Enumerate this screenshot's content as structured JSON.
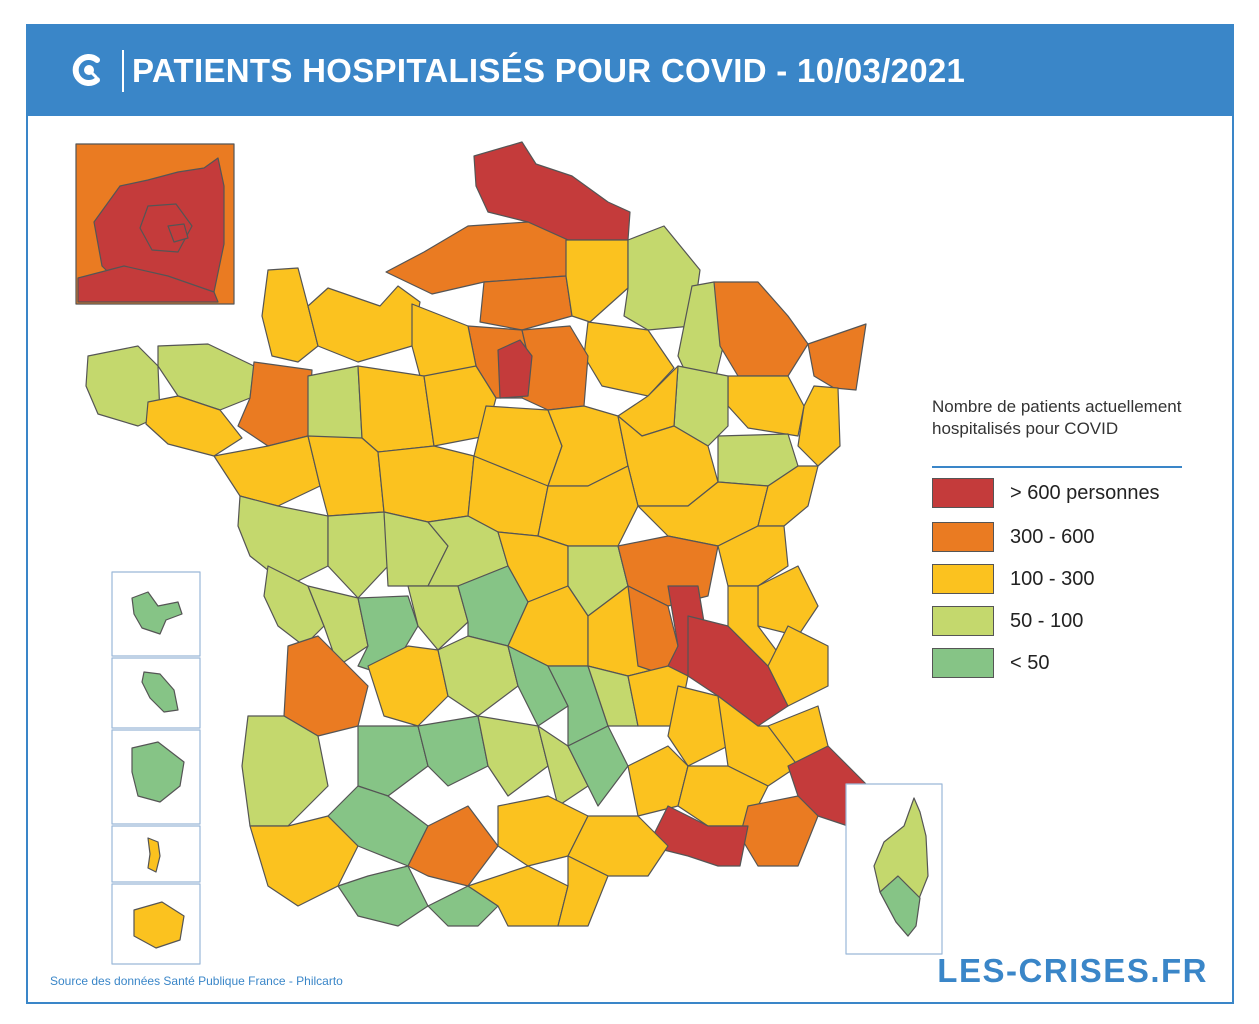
{
  "header": {
    "title": "PATIENTS HOSPITALISÉS POUR COVID - 10/03/2021",
    "logo_icon": "les-crises-c-icon"
  },
  "colors": {
    "frame_blue": "#3a86c8",
    "over_600": "#c43b3b",
    "c300_600": "#ea7b22",
    "c100_300": "#fbc21f",
    "c50_100": "#c4d86d",
    "under_50": "#86c486",
    "border": "#555555"
  },
  "legend": {
    "title": "Nombre de patients actuellement hospitalisés pour COVID",
    "items": [
      {
        "label": "> 600 personnes",
        "color": "#c43b3b"
      },
      {
        "label": "300 - 600",
        "color": "#ea7b22"
      },
      {
        "label": "100 - 300",
        "color": "#fbc21f"
      },
      {
        "label": "50 - 100",
        "color": "#c4d86d"
      },
      {
        "label": "< 50",
        "color": "#86c486"
      }
    ]
  },
  "insets": [
    "paris-region-inset",
    "guadeloupe",
    "martinique",
    "guyane",
    "mayotte",
    "la-reunion",
    "corse"
  ],
  "footer": {
    "source": "Source des données Santé Publique France - Philcarto",
    "brand": "LES-CRISES.FR"
  }
}
